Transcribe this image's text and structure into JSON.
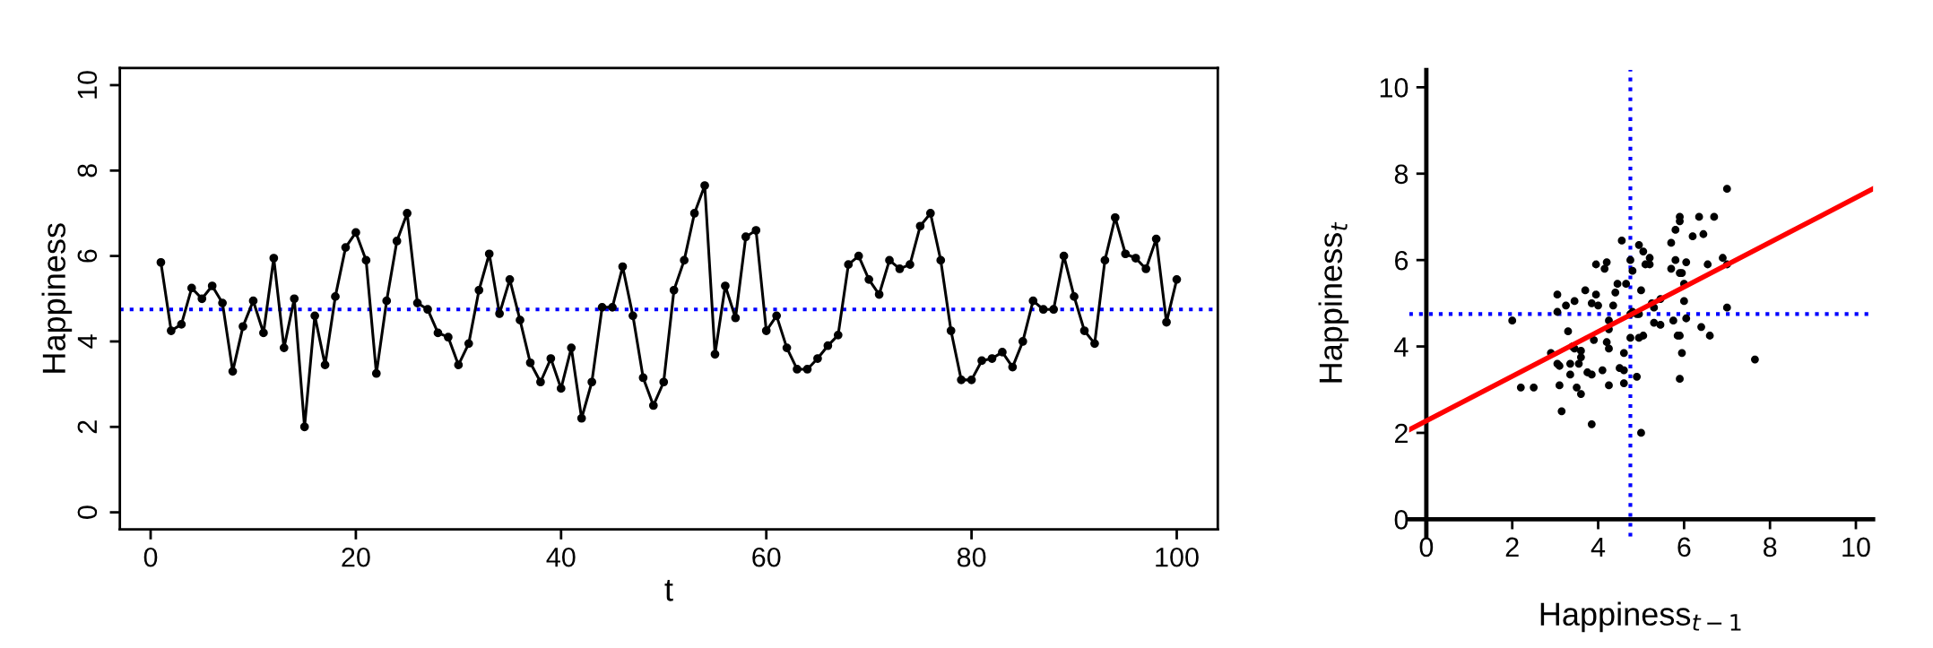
{
  "chart_data": [
    {
      "type": "line",
      "xlabel": "t",
      "ylabel": "Happiness",
      "marker": "circle",
      "line_style": "solid",
      "grid": false,
      "x": [
        1,
        2,
        3,
        4,
        5,
        6,
        7,
        8,
        9,
        10,
        11,
        12,
        13,
        14,
        15,
        16,
        17,
        18,
        19,
        20,
        21,
        22,
        23,
        24,
        25,
        26,
        27,
        28,
        29,
        30,
        31,
        32,
        33,
        34,
        35,
        36,
        37,
        38,
        39,
        40,
        41,
        42,
        43,
        44,
        45,
        46,
        47,
        48,
        49,
        50,
        51,
        52,
        53,
        54,
        55,
        56,
        57,
        58,
        59,
        60,
        61,
        62,
        63,
        64,
        65,
        66,
        67,
        68,
        69,
        70,
        71,
        72,
        73,
        74,
        75,
        76,
        77,
        78,
        79,
        80,
        81,
        82,
        83,
        84,
        85,
        86,
        87,
        88,
        89,
        90,
        91,
        92,
        93,
        94,
        95,
        96,
        97,
        98,
        99,
        100
      ],
      "series": [
        {
          "color": "#000000",
          "values": [
            5.85,
            4.25,
            4.4,
            5.25,
            5.0,
            5.3,
            4.9,
            3.3,
            4.35,
            4.95,
            4.2,
            5.95,
            3.85,
            5.0,
            2.0,
            4.6,
            3.45,
            5.05,
            6.2,
            6.55,
            5.9,
            3.25,
            4.95,
            6.35,
            7.0,
            4.9,
            4.75,
            4.2,
            4.1,
            3.45,
            3.95,
            5.2,
            6.05,
            4.65,
            5.45,
            4.5,
            3.5,
            3.05,
            3.6,
            2.9,
            3.85,
            2.2,
            3.05,
            4.8,
            4.8,
            5.75,
            4.6,
            3.15,
            2.5,
            3.05,
            5.2,
            5.9,
            7.0,
            7.65,
            3.7,
            5.3,
            4.55,
            6.45,
            6.6,
            4.25,
            4.6,
            3.85,
            3.35,
            3.35,
            3.6,
            3.9,
            4.15,
            5.8,
            6.0,
            5.45,
            5.1,
            5.9,
            5.7,
            5.8,
            6.7,
            7.0,
            5.9,
            4.25,
            3.1,
            3.1,
            3.55,
            3.6,
            3.75,
            3.4,
            4.0,
            4.95,
            4.75,
            4.75,
            6.0,
            5.05,
            4.25,
            3.95,
            5.9,
            6.9,
            6.05,
            5.95,
            5.7,
            6.4,
            4.45,
            5.45
          ]
        }
      ],
      "ref_lines": [
        {
          "axis": "y",
          "value": 4.75,
          "color": "#0000ff",
          "line_style": "dotted"
        }
      ],
      "xlim": [
        -3,
        104
      ],
      "ylim": [
        -0.4,
        10.4
      ],
      "xticks": [
        0,
        20,
        40,
        60,
        80,
        100
      ],
      "yticks": [
        0,
        2,
        4,
        6,
        8,
        10
      ]
    },
    {
      "type": "scatter",
      "xlabel": "Happiness$_{t−1}$",
      "ylabel": "Happiness$_{t}$",
      "grid": false,
      "series": [
        {
          "type": "scatter",
          "color": "#000000",
          "marker": "circle",
          "x": [
            5.85,
            4.25,
            4.4,
            5.25,
            5.0,
            5.3,
            4.9,
            3.3,
            4.35,
            4.95,
            4.2,
            5.95,
            3.85,
            5.0,
            2.0,
            4.6,
            3.45,
            5.05,
            6.2,
            6.55,
            5.9,
            3.25,
            4.95,
            6.35,
            7.0,
            4.9,
            4.75,
            4.2,
            4.1,
            3.45,
            3.95,
            5.2,
            6.05,
            4.65,
            5.45,
            4.5,
            3.5,
            3.05,
            3.6,
            2.9,
            3.85,
            2.2,
            3.05,
            4.8,
            4.8,
            5.75,
            4.6,
            3.15,
            2.5,
            3.05,
            5.2,
            5.9,
            7.0,
            7.65,
            3.7,
            5.3,
            4.55,
            6.45,
            6.6,
            4.25,
            4.6,
            3.85,
            3.35,
            3.35,
            3.6,
            3.9,
            4.15,
            5.8,
            6.0,
            5.45,
            5.1,
            5.9,
            5.7,
            5.8,
            6.7,
            7.0,
            5.9,
            4.25,
            3.1,
            3.1,
            3.55,
            3.6,
            3.75,
            3.4,
            4.0,
            4.95,
            4.75,
            4.75,
            6.0,
            5.05,
            4.25,
            3.95,
            5.9,
            6.9,
            6.05,
            5.95,
            5.7,
            6.4,
            4.45
          ],
          "values": [
            4.25,
            4.4,
            5.25,
            5.0,
            5.3,
            4.9,
            3.3,
            4.35,
            4.95,
            4.2,
            5.95,
            3.85,
            5.0,
            2.0,
            4.6,
            3.45,
            5.05,
            6.2,
            6.55,
            5.9,
            3.25,
            4.95,
            6.35,
            7.0,
            4.9,
            4.75,
            4.2,
            4.1,
            3.45,
            3.95,
            5.2,
            6.05,
            4.65,
            5.45,
            4.5,
            3.5,
            3.05,
            3.6,
            2.9,
            3.85,
            2.2,
            3.05,
            4.8,
            4.8,
            5.75,
            4.6,
            3.15,
            2.5,
            3.05,
            5.2,
            5.9,
            7.0,
            7.65,
            3.7,
            5.3,
            4.55,
            6.45,
            6.6,
            4.25,
            4.6,
            3.85,
            3.35,
            3.35,
            3.6,
            3.9,
            4.15,
            5.8,
            6.0,
            5.45,
            5.1,
            5.9,
            5.7,
            5.8,
            6.7,
            7.0,
            5.9,
            4.25,
            3.1,
            3.1,
            3.55,
            3.6,
            3.75,
            3.4,
            4.0,
            4.95,
            4.75,
            4.75,
            6.0,
            5.05,
            4.25,
            3.95,
            5.9,
            6.9,
            6.05,
            5.95,
            5.7,
            6.4,
            4.45,
            5.45
          ]
        },
        {
          "type": "line",
          "color": "#ff0000",
          "marker": "none",
          "x": [
            -0.4,
            10.4
          ],
          "values": [
            2.07,
            7.65
          ]
        }
      ],
      "ref_lines": [
        {
          "axis": "x",
          "value": 4.75,
          "color": "#0000ff",
          "line_style": "dotted"
        },
        {
          "axis": "y",
          "value": 4.75,
          "color": "#0000ff",
          "line_style": "dotted"
        }
      ],
      "xlim": [
        -0.4,
        10.4
      ],
      "ylim": [
        -0.4,
        10.4
      ],
      "xticks": [
        0,
        2,
        4,
        6,
        8,
        10
      ],
      "yticks": [
        0,
        2,
        4,
        6,
        8,
        10
      ]
    }
  ]
}
